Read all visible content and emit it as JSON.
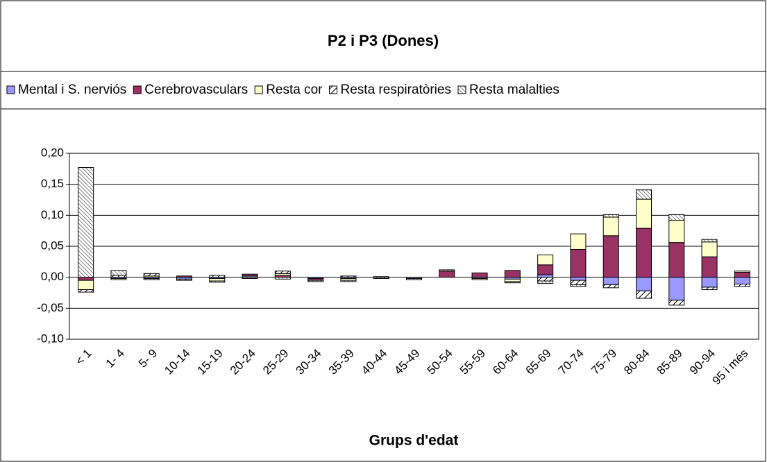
{
  "chart_data": {
    "type": "stacked_bar",
    "title": "P2 i P3 (Dones)",
    "x_label": "Grups d'edat",
    "categories": [
      "< 1",
      "1- 4",
      "5- 9",
      "10-14",
      "15-19",
      "20-24",
      "25-29",
      "30-34",
      "35-39",
      "40-44",
      "45-49",
      "50-54",
      "55-59",
      "60-64",
      "65-69",
      "70-74",
      "75-79",
      "80-84",
      "85-89",
      "90-94",
      "95 i més"
    ],
    "series": [
      {
        "name": "Mental i S. nerviós",
        "color": "#9999ff",
        "values": [
          0,
          -0.002,
          -0.002,
          -0.003,
          -0.002,
          0.002,
          0,
          -0.002,
          -0.002,
          0.001,
          -0.002,
          0,
          -0.002,
          -0.003,
          0.004,
          -0.005,
          -0.012,
          -0.022,
          -0.037,
          -0.016,
          -0.011
        ]
      },
      {
        "name": "Cerebrovasculars",
        "color": "#993366",
        "values": [
          -0.005,
          0,
          0,
          0.002,
          0,
          0.003,
          0.003,
          -0.003,
          0,
          0,
          0,
          0.01,
          0.007,
          0.011,
          0.016,
          0.045,
          0.067,
          0.079,
          0.056,
          0.033,
          0.008
        ]
      },
      {
        "name": "Resta cor",
        "color": "#ffffcc",
        "values": [
          -0.015,
          -0.002,
          0.002,
          0,
          -0.004,
          0,
          0.003,
          0,
          -0.003,
          0,
          0,
          0,
          -0.002,
          -0.004,
          0.016,
          0.025,
          0.03,
          0.047,
          0.036,
          0.024,
          0.002
        ]
      },
      {
        "name": "Resta respiratòries",
        "color": "#ffffff",
        "hatch": "sparse",
        "values": [
          -0.004,
          0.003,
          0.004,
          -0.002,
          0.003,
          0,
          0.004,
          0,
          0.002,
          0,
          0,
          0,
          0,
          0,
          -0.006,
          -0.007,
          -0.005,
          -0.012,
          -0.008,
          -0.004,
          -0.004
        ]
      },
      {
        "name": "Resta malalties",
        "color": "#ffffff",
        "hatch": "dense",
        "values": [
          0.177,
          0.008,
          -0.002,
          0,
          -0.002,
          -0.002,
          -0.003,
          -0.002,
          -0.002,
          -0.002,
          -0.002,
          0.002,
          0,
          -0.002,
          -0.004,
          -0.003,
          0.004,
          0.015,
          0.009,
          0.004,
          0
        ]
      }
    ],
    "ylim": [
      -0.1,
      0.2
    ],
    "yticks": [
      {
        "value": -0.1,
        "label": "-0,10"
      },
      {
        "value": -0.05,
        "label": "-0,05"
      },
      {
        "value": 0,
        "label": "0,00"
      },
      {
        "value": 0.05,
        "label": "0,05"
      },
      {
        "value": 0.1,
        "label": "0,10"
      },
      {
        "value": 0.15,
        "label": "0,15"
      },
      {
        "value": 0.2,
        "label": "0,20"
      }
    ],
    "grid": true,
    "legend": "top"
  }
}
